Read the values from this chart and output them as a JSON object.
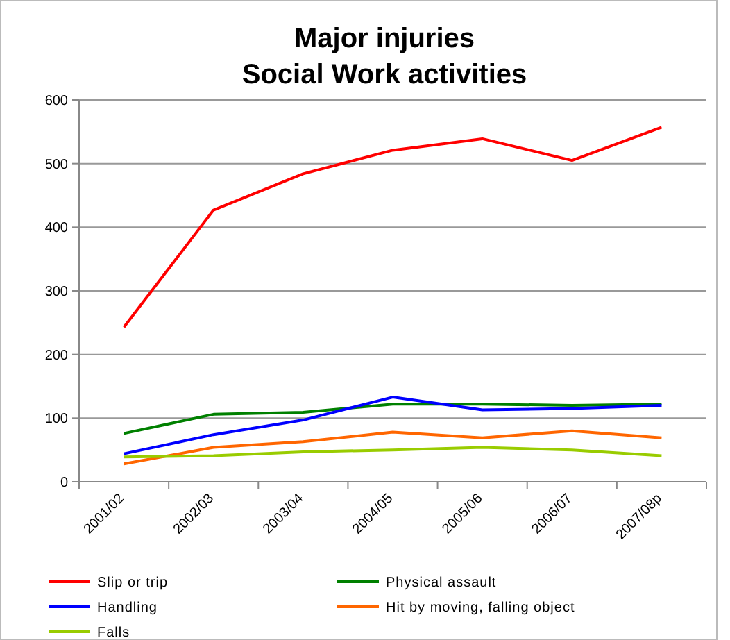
{
  "chart_data": {
    "type": "line",
    "title": "Major injuries\nSocial Work activities",
    "categories": [
      "2001/02",
      "2002/03",
      "2003/04",
      "2004/05",
      "2005/06",
      "2006/07",
      "2007/08p"
    ],
    "series": [
      {
        "name": "Slip or trip",
        "color": "#ff0000",
        "values": [
          243,
          427,
          484,
          521,
          539,
          505,
          557
        ]
      },
      {
        "name": "Physical assault",
        "color": "#008000",
        "values": [
          76,
          106,
          109,
          122,
          122,
          120,
          122
        ]
      },
      {
        "name": "Handling",
        "color": "#0000ff",
        "values": [
          44,
          74,
          97,
          133,
          113,
          115,
          120
        ]
      },
      {
        "name": "Hit by moving, falling object",
        "color": "#ff6600",
        "values": [
          28,
          54,
          63,
          78,
          69,
          80,
          69
        ]
      },
      {
        "name": "Falls",
        "color": "#99cc00",
        "values": [
          39,
          41,
          47,
          50,
          54,
          50,
          41
        ]
      }
    ],
    "ylim": [
      0,
      600
    ],
    "yticks": [
      0,
      100,
      200,
      300,
      400,
      500,
      600
    ],
    "grid": "y",
    "legend": "bottom",
    "marker": "none",
    "line_style": "solid"
  }
}
